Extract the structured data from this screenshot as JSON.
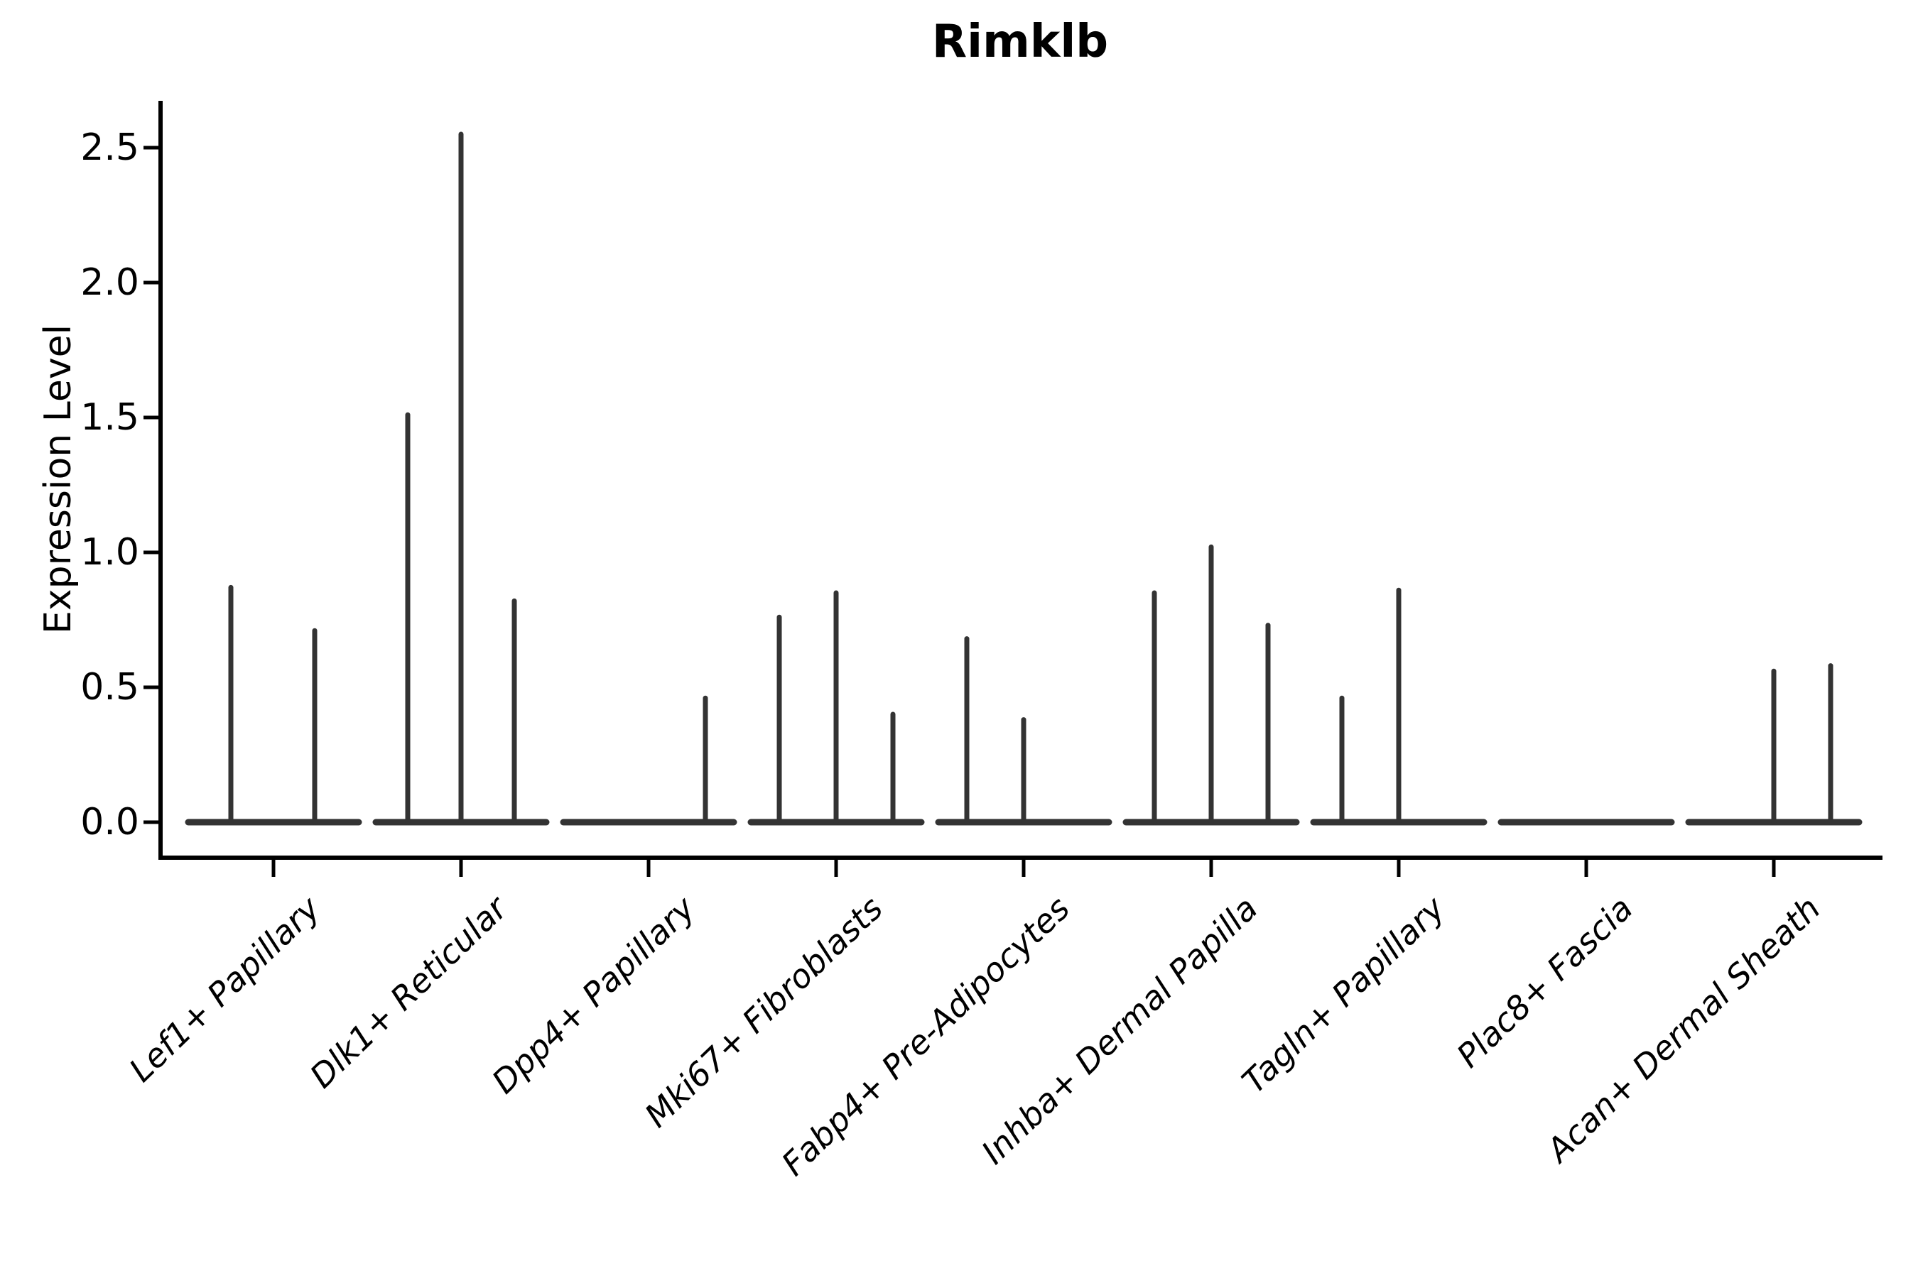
{
  "title": "Rimklb",
  "axes": {
    "ylabel": "Expression Level",
    "ytick_labels": [
      "0.0",
      "0.5",
      "1.0",
      "1.5",
      "2.0",
      "2.5"
    ]
  },
  "chart_data": {
    "type": "violin",
    "title": "Rimklb",
    "xlabel": "",
    "ylabel": "Expression Level",
    "ylim": [
      -0.13,
      2.67
    ],
    "yticks": [
      0.0,
      0.5,
      1.0,
      1.5,
      2.0,
      2.5
    ],
    "grid": false,
    "legend": "none",
    "baseline_value": 0.0,
    "violin_color": "#333333",
    "axis_color": "#000000",
    "categories": [
      "Lef1+ Papillary",
      "Dlk1+ Reticular",
      "Dpp4+ Papillary",
      "Mki67+ Fibroblasts",
      "Fabp4+ Pre-Adipocytes",
      "Inhba+ Dermal Papilla",
      "Tagln+ Papillary",
      "Plac8+ Fascia",
      "Acan+ Dermal Sheath"
    ],
    "series": [
      {
        "name": "Lef1+ Papillary",
        "spikes": [
          {
            "offset": -60,
            "value": 0.87
          },
          {
            "offset": 58,
            "value": 0.71
          }
        ]
      },
      {
        "name": "Dlk1+ Reticular",
        "spikes": [
          {
            "offset": -75,
            "value": 1.51
          },
          {
            "offset": 0,
            "value": 2.55
          },
          {
            "offset": 75,
            "value": 0.82
          }
        ]
      },
      {
        "name": "Dpp4+ Papillary",
        "spikes": [
          {
            "offset": 80,
            "value": 0.46
          }
        ]
      },
      {
        "name": "Mki67+ Fibroblasts",
        "spikes": [
          {
            "offset": -80,
            "value": 0.76
          },
          {
            "offset": 0,
            "value": 0.85
          },
          {
            "offset": 80,
            "value": 0.4
          }
        ]
      },
      {
        "name": "Fabp4+ Pre-Adipocytes",
        "spikes": [
          {
            "offset": -80,
            "value": 0.68
          },
          {
            "offset": 0,
            "value": 0.38
          }
        ]
      },
      {
        "name": "Inhba+ Dermal Papilla",
        "spikes": [
          {
            "offset": -80,
            "value": 0.85
          },
          {
            "offset": 0,
            "value": 1.02
          },
          {
            "offset": 80,
            "value": 0.73
          }
        ]
      },
      {
        "name": "Tagln+ Papillary",
        "spikes": [
          {
            "offset": -80,
            "value": 0.46
          },
          {
            "offset": 0,
            "value": 0.86
          }
        ]
      },
      {
        "name": "Plac8+ Fascia",
        "spikes": []
      },
      {
        "name": "Acan+ Dermal Sheath",
        "spikes": [
          {
            "offset": 0,
            "value": 0.56
          },
          {
            "offset": 80,
            "value": 0.58
          }
        ]
      }
    ]
  }
}
